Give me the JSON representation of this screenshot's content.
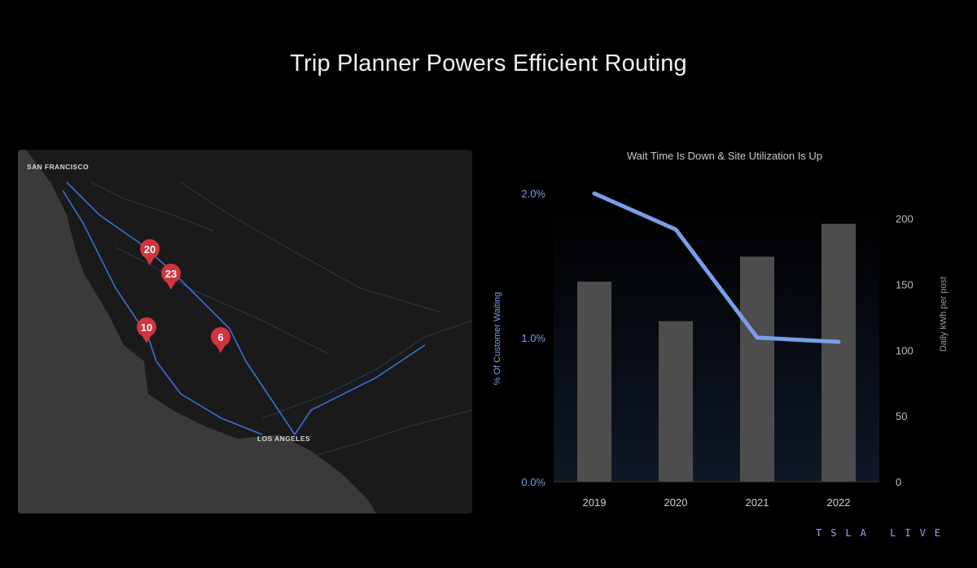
{
  "page": {
    "title": "Trip Planner Powers Efficient Routing",
    "brand": "TSLA LIVE"
  },
  "map": {
    "labels": {
      "north_city": "SAN FRANCISCO",
      "south_city": "LOS ANGELES"
    },
    "pins": [
      {
        "value": "20",
        "color": "#d0343d"
      },
      {
        "value": "23",
        "color": "#d0343d"
      },
      {
        "value": "10",
        "color": "#d0343d"
      },
      {
        "value": "6",
        "color": "#d0343d"
      }
    ],
    "route_color": "#3d6fd6"
  },
  "chart_data": {
    "type": "bar",
    "title": "Wait Time Is Down & Site Utilization Is Up",
    "categories": [
      "2019",
      "2020",
      "2021",
      "2022"
    ],
    "series": [
      {
        "name": "Daily kWh per post",
        "type": "bar",
        "axis": "right",
        "values": [
          152,
          122,
          171,
          196
        ],
        "color": "#4d4d4d"
      },
      {
        "name": "% Of Customer Waiting",
        "type": "line",
        "axis": "left",
        "values": [
          2.0,
          1.75,
          1.0,
          0.97
        ],
        "color": "#7a9ee8"
      }
    ],
    "y_left": {
      "label": "% Of Customer Waiting",
      "ticks": [
        "0.0%",
        "1.0%",
        "2.0%"
      ],
      "tick_values": [
        0,
        1,
        2
      ],
      "range": [
        0,
        2.1
      ]
    },
    "y_right": {
      "label": "Daily kWh per post",
      "ticks": [
        "0",
        "50",
        "100",
        "150",
        "200"
      ],
      "tick_values": [
        0,
        50,
        100,
        150,
        200
      ],
      "range": [
        0,
        230
      ]
    }
  }
}
